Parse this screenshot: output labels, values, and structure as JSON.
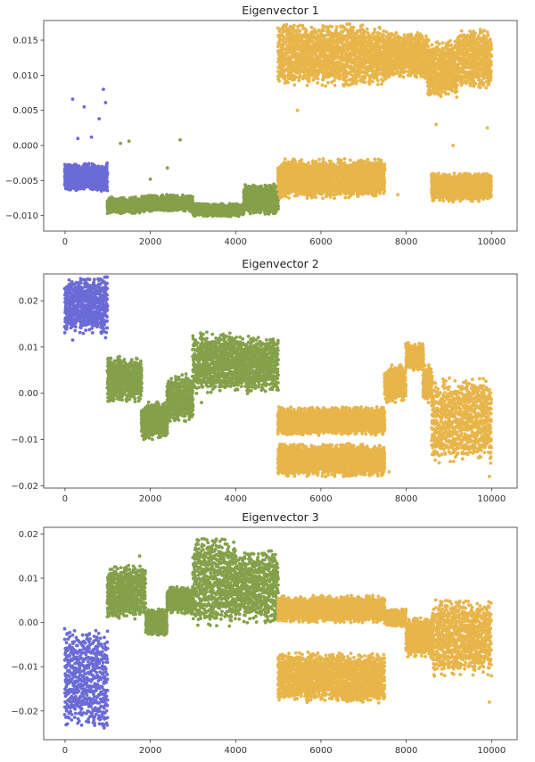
{
  "colors": {
    "group_a": "#6b6bd6",
    "group_b": "#84a04a",
    "group_c": "#e8b54a",
    "axes": "#333333"
  },
  "chart_data": [
    {
      "type": "scatter",
      "title": "Eigenvector 1",
      "xlabel": "",
      "ylabel": "",
      "xlim": [
        -500,
        10600
      ],
      "ylim": [
        -0.0122,
        0.0178
      ],
      "xticks": [
        0,
        2000,
        4000,
        6000,
        8000,
        10000
      ],
      "yticks": [
        -0.01,
        -0.005,
        0.0,
        0.005,
        0.01,
        0.015
      ],
      "ytick_labels": [
        "−0.010",
        "−0.005",
        "0.000",
        "0.005",
        "0.010",
        "0.015"
      ],
      "grid": false,
      "series": [
        {
          "color": "#6b6bd6",
          "x_range": [
            0,
            1000
          ],
          "bands": [
            [
              0,
              1000,
              -0.0065,
              -0.0025
            ]
          ],
          "outliers": [
            [
              180,
              0.0066
            ],
            [
              450,
              0.0055
            ],
            [
              620,
              0.0012
            ],
            [
              900,
              0.008
            ],
            [
              950,
              0.0061
            ],
            [
              300,
              0.001
            ],
            [
              800,
              0.0038
            ]
          ]
        },
        {
          "color": "#84a04a",
          "x_range": [
            1000,
            5000
          ],
          "bands": [
            [
              1000,
              1800,
              -0.0097,
              -0.0074
            ],
            [
              1800,
              3000,
              -0.0094,
              -0.007
            ],
            [
              3000,
              4200,
              -0.0101,
              -0.0083
            ],
            [
              4200,
              5000,
              -0.0099,
              -0.0055
            ]
          ],
          "outliers": [
            [
              1300,
              0.0003
            ],
            [
              1500,
              0.0006
            ],
            [
              2700,
              0.0008
            ],
            [
              2400,
              -0.0032
            ],
            [
              2000,
              -0.0048
            ]
          ]
        },
        {
          "color": "#e8b54a",
          "x_range": [
            5000,
            10000
          ],
          "bands": [
            [
              5000,
              7500,
              0.0085,
              0.0172
            ],
            [
              5000,
              7500,
              -0.0075,
              -0.002
            ],
            [
              7500,
              8500,
              0.0095,
              0.016
            ],
            [
              8500,
              9200,
              0.007,
              0.015
            ],
            [
              9200,
              10000,
              0.008,
              0.0165
            ],
            [
              8600,
              10000,
              -0.008,
              -0.004
            ]
          ],
          "outliers": [
            [
              5450,
              0.005
            ],
            [
              7200,
              -0.007
            ],
            [
              7800,
              -0.007
            ],
            [
              8700,
              0.003
            ],
            [
              9100,
              0.0
            ],
            [
              9900,
              0.0025
            ]
          ]
        }
      ]
    },
    {
      "type": "scatter",
      "title": "Eigenvector 2",
      "xlabel": "",
      "ylabel": "",
      "xlim": [
        -500,
        10600
      ],
      "ylim": [
        -0.0205,
        0.0258
      ],
      "xticks": [
        0,
        2000,
        4000,
        6000,
        8000,
        10000
      ],
      "yticks": [
        -0.02,
        -0.01,
        0.0,
        0.01,
        0.02
      ],
      "ytick_labels": [
        "−0.02",
        "−0.01",
        "0.00",
        "0.01",
        "0.02"
      ],
      "grid": false,
      "series": [
        {
          "color": "#6b6bd6",
          "x_range": [
            0,
            1000
          ],
          "bands": [
            [
              0,
              1000,
              0.013,
              0.025
            ]
          ],
          "outliers": [
            [
              180,
              0.0115
            ],
            [
              950,
              0.012
            ]
          ]
        },
        {
          "color": "#84a04a",
          "x_range": [
            1000,
            5000
          ],
          "bands": [
            [
              1000,
              1800,
              -0.002,
              0.008
            ],
            [
              1800,
              2400,
              -0.01,
              -0.002
            ],
            [
              2400,
              3000,
              -0.006,
              0.004
            ],
            [
              3000,
              4000,
              0.0,
              0.013
            ],
            [
              4000,
              5000,
              0.0,
              0.012
            ]
          ],
          "outliers": [
            [
              2800,
              -0.006
            ],
            [
              3200,
              -0.002
            ]
          ]
        },
        {
          "color": "#e8b54a",
          "x_range": [
            5000,
            10000
          ],
          "bands": [
            [
              5000,
              7500,
              -0.009,
              -0.003
            ],
            [
              5000,
              7500,
              -0.018,
              -0.011
            ],
            [
              7500,
              8000,
              -0.002,
              0.006
            ],
            [
              8000,
              8400,
              0.005,
              0.011
            ],
            [
              8400,
              8600,
              -0.002,
              0.006
            ],
            [
              8600,
              10000,
              -0.015,
              0.003
            ]
          ],
          "outliers": [
            [
              7600,
              -0.017
            ],
            [
              9950,
              -0.018
            ]
          ]
        }
      ]
    },
    {
      "type": "scatter",
      "title": "Eigenvector 3",
      "xlabel": "",
      "ylabel": "",
      "xlim": [
        -500,
        10600
      ],
      "ylim": [
        -0.0265,
        0.0215
      ],
      "xticks": [
        0,
        2000,
        4000,
        6000,
        8000,
        10000
      ],
      "yticks": [
        -0.02,
        -0.01,
        0.0,
        0.01,
        0.02
      ],
      "ytick_labels": [
        "−0.02",
        "−0.01",
        "0.00",
        "0.01",
        "0.02"
      ],
      "grid": false,
      "series": [
        {
          "color": "#6b6bd6",
          "x_range": [
            0,
            1000
          ],
          "bands": [
            [
              0,
              1000,
              -0.024,
              -0.002
            ]
          ],
          "outliers": []
        },
        {
          "color": "#84a04a",
          "x_range": [
            1000,
            5000
          ],
          "bands": [
            [
              1000,
              1900,
              0.001,
              0.013
            ],
            [
              1900,
              2400,
              -0.003,
              0.003
            ],
            [
              2400,
              3000,
              0.002,
              0.008
            ],
            [
              3000,
              4000,
              -0.001,
              0.019
            ],
            [
              4000,
              5000,
              0.0,
              0.016
            ]
          ],
          "outliers": [
            [
              1100,
              0.012
            ],
            [
              2800,
              0.002
            ],
            [
              1750,
              0.015
            ]
          ]
        },
        {
          "color": "#e8b54a",
          "x_range": [
            5000,
            10000
          ],
          "bands": [
            [
              5000,
              7500,
              0.0,
              0.006
            ],
            [
              5000,
              7500,
              -0.018,
              -0.007
            ],
            [
              7500,
              8000,
              -0.001,
              0.003
            ],
            [
              8000,
              8600,
              -0.008,
              0.001
            ],
            [
              8600,
              10000,
              -0.012,
              0.005
            ]
          ],
          "outliers": [
            [
              9950,
              -0.018
            ],
            [
              8900,
              -0.012
            ]
          ]
        }
      ]
    }
  ]
}
